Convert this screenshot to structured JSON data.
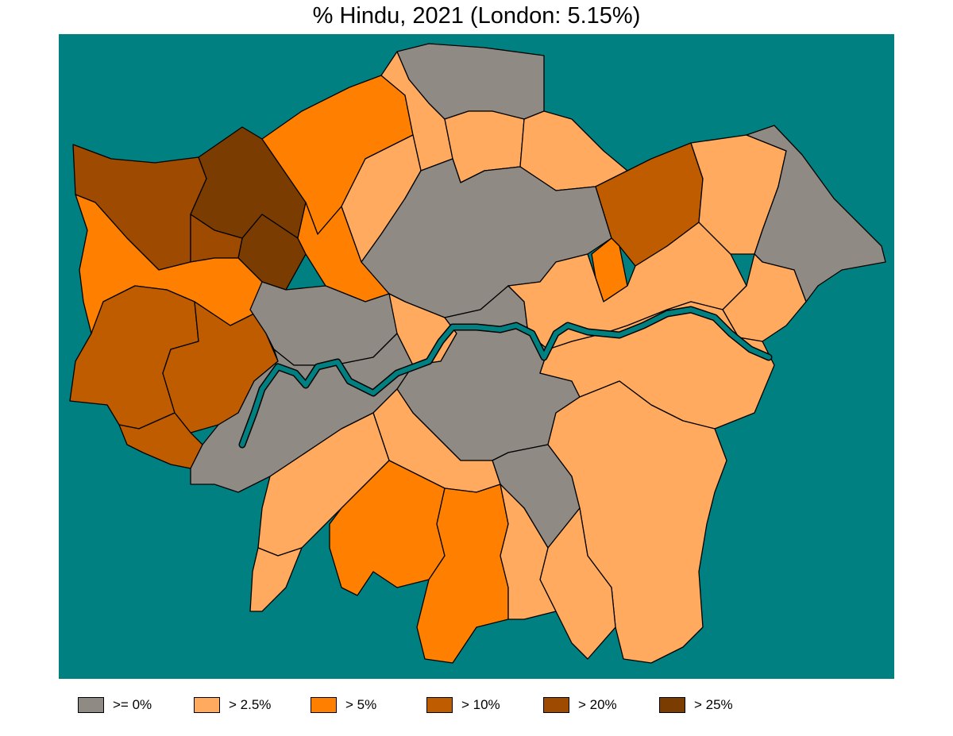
{
  "title": "% Hindu, 2021 (London: 5.15%)",
  "map": {
    "background_color": "#008080",
    "river_color": "#008080",
    "border_color": "#000000"
  },
  "legend": [
    {
      "label": ">= 0%",
      "color": "#8f8b84"
    },
    {
      "label": "> 2.5%",
      "color": "#ffaa5e"
    },
    {
      "label": "> 5%",
      "color": "#ff8000"
    },
    {
      "label": "> 10%",
      "color": "#bf5c00"
    },
    {
      "label": "> 20%",
      "color": "#9e4a00"
    },
    {
      "label": "> 25%",
      "color": "#7a3c00"
    }
  ]
}
